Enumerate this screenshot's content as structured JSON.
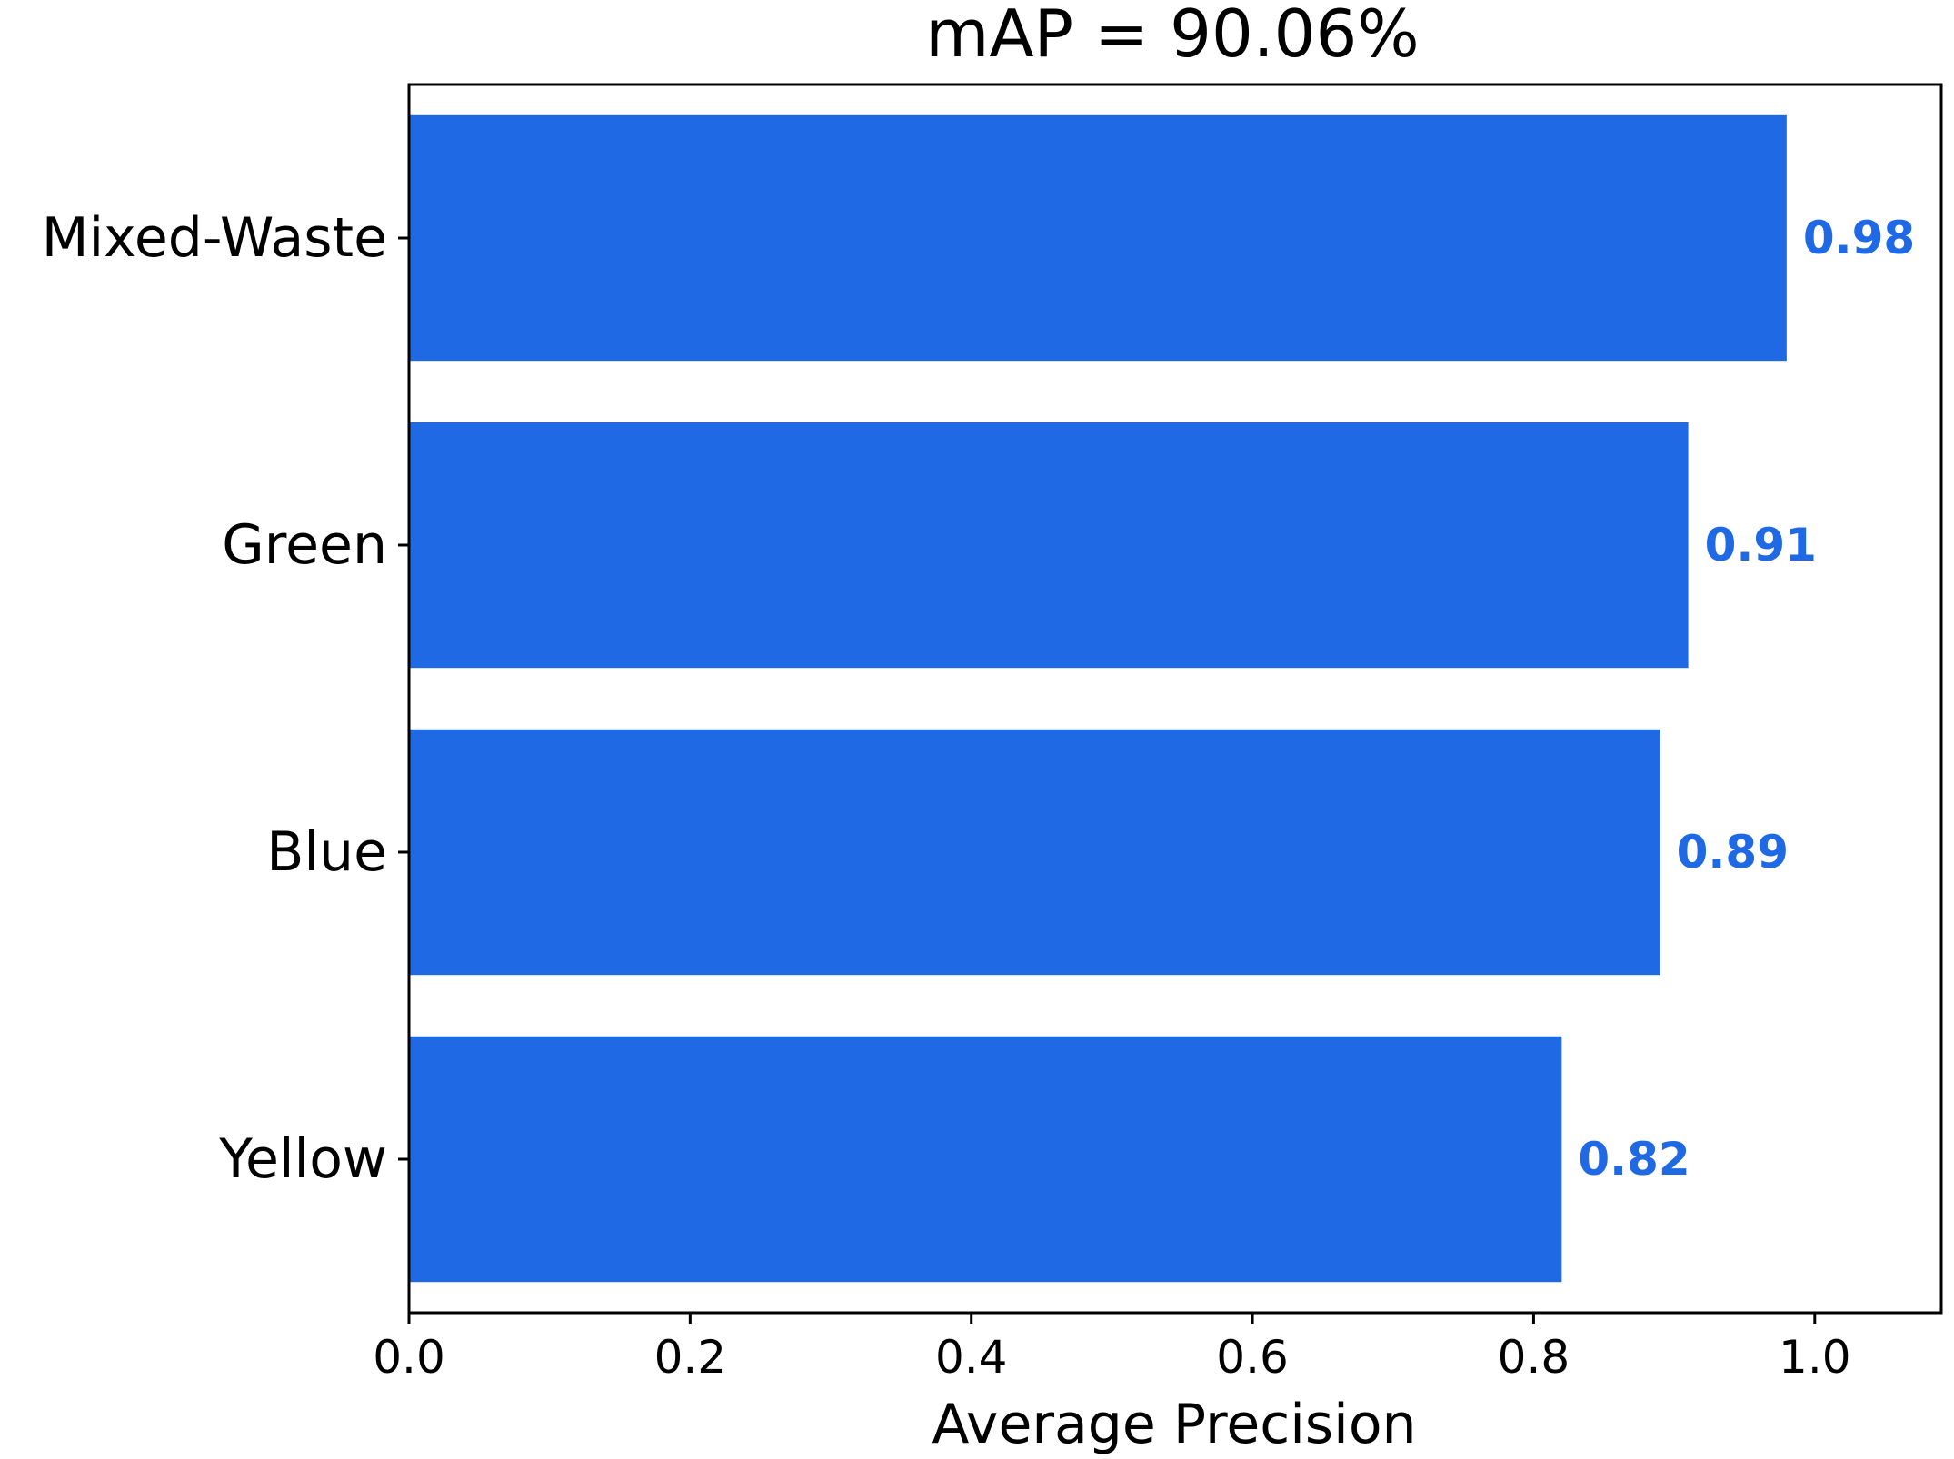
{
  "chart_data": {
    "type": "bar",
    "orientation": "horizontal",
    "title": "mAP = 90.06%",
    "xlabel": "Average Precision",
    "ylabel": "",
    "categories": [
      "Mixed-Waste",
      "Green",
      "Blue",
      "Yellow"
    ],
    "values": [
      0.98,
      0.91,
      0.89,
      0.82
    ],
    "value_labels": [
      "0.98",
      "0.91",
      "0.89",
      "0.82"
    ],
    "xlim": [
      0,
      1.09
    ],
    "xticks": [
      0.0,
      0.2,
      0.4,
      0.6,
      0.8,
      1.0
    ],
    "xtick_labels": [
      "0.0",
      "0.2",
      "0.4",
      "0.6",
      "0.8",
      "1.0"
    ],
    "grid": false,
    "colors": {
      "bar": "#1f69e4",
      "value_label": "#1f69e4"
    }
  }
}
